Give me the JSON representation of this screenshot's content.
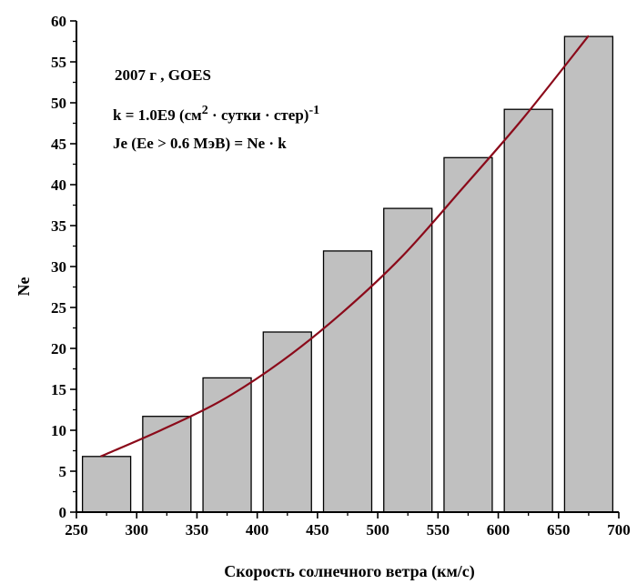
{
  "chart_data": {
    "type": "bar",
    "xlabel": "Скорость солнечного ветра (км/с)",
    "ylabel": "Ne",
    "xlim": [
      250,
      700
    ],
    "ylim": [
      0,
      60
    ],
    "x_ticks": [
      "250",
      "300",
      "350",
      "400",
      "450",
      "500",
      "550",
      "600",
      "650",
      "700"
    ],
    "y_ticks": [
      "0",
      "5",
      "10",
      "15",
      "20",
      "25",
      "30",
      "35",
      "40",
      "45",
      "50",
      "55",
      "60"
    ],
    "bars": [
      {
        "x_start": 255,
        "x_end": 295,
        "value": 6.8
      },
      {
        "x_start": 305,
        "x_end": 345,
        "value": 11.7
      },
      {
        "x_start": 355,
        "x_end": 395,
        "value": 16.4
      },
      {
        "x_start": 405,
        "x_end": 445,
        "value": 22.0
      },
      {
        "x_start": 455,
        "x_end": 495,
        "value": 31.9
      },
      {
        "x_start": 505,
        "x_end": 545,
        "value": 37.1
      },
      {
        "x_start": 555,
        "x_end": 595,
        "value": 43.3
      },
      {
        "x_start": 605,
        "x_end": 645,
        "value": 49.2
      },
      {
        "x_start": 655,
        "x_end": 695,
        "value": 58.1
      }
    ],
    "fit_curve": {
      "x": [
        270,
        320,
        370,
        420,
        470,
        520,
        570,
        620,
        675
      ],
      "y": [
        6.8,
        10.0,
        13.6,
        18.4,
        24.3,
        31.2,
        39.5,
        48.0,
        58.2
      ]
    },
    "bar_color": "#c0c0c0",
    "curve_color": "#8b0a1a",
    "grid": false,
    "annotations": {
      "line1": "2007 г ,  GOES",
      "line2_prefix": "k = 1.0E9 (см",
      "line2_sup1": "2",
      "line2_mid": " · сутки · стер)",
      "line2_sup2": "-1",
      "line3": "Je (Ee > 0.6 МэВ) = Ne · k"
    }
  }
}
